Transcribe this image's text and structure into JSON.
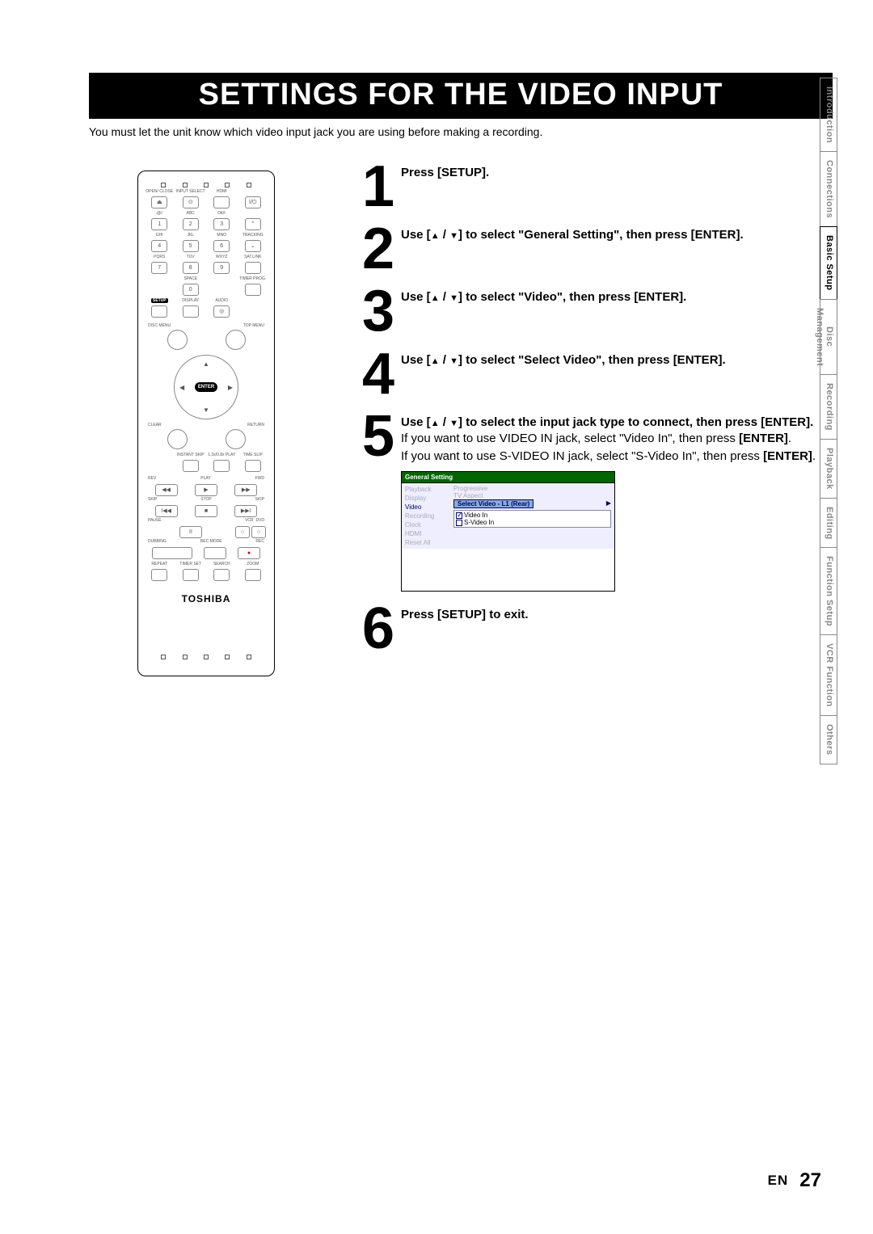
{
  "title": "SETTINGS FOR THE VIDEO INPUT",
  "intro": "You must let the unit know which video input jack you are using before making a recording.",
  "brand": "TOSHIBA",
  "remote": {
    "labels_row1": [
      "OPEN/\nCLOSE",
      "INPUT\nSELECT",
      "HDMI",
      ""
    ],
    "labels_row2": [
      ".@/:",
      "ABC",
      "DEF",
      ""
    ],
    "labels_row3": [
      "GHI",
      "JKL",
      "MNO",
      "TRACKING"
    ],
    "labels_row4": [
      "PQRS",
      "TUV",
      "WXYZ",
      "SAT.LINK"
    ],
    "labels_row5": [
      "",
      "SPACE",
      "",
      "TIMER\nPROG."
    ],
    "labels_row6": [
      "SETUP",
      "DISPLAY",
      "AUDIO",
      ""
    ],
    "nums": [
      "1",
      "2",
      "3",
      "",
      "4",
      "5",
      "6",
      "",
      "7",
      "8",
      "9",
      "",
      "",
      "0",
      "",
      ""
    ],
    "btn_eject": "⏏",
    "btn_target": "⊙",
    "btn_power": "I/⏻",
    "btn_up": "⌃",
    "btn_dn": "⌄",
    "disc_menu": "DISC MENU",
    "top_menu": "TOP MENU",
    "enter": "ENTER",
    "clear": "CLEAR",
    "return": "RETURN",
    "instant_skip": "INSTANT\nSKIP",
    "slow": "1.3x/0.8x\nPLAY",
    "timeslip": "TIME SLIP",
    "rev": "REV",
    "play_l": "PLAY",
    "fwd": "FWD",
    "skip_l": "SKIP",
    "stop": "STOP",
    "skip_r": "SKIP",
    "pause": "PAUSE",
    "vcr": "VCR",
    "dvd": "DVD",
    "dubbing": "DUBBING",
    "recmode": "REC MODE",
    "rec": "REC",
    "repeat": "REPEAT",
    "timerset": "TIMER SET",
    "search": "SEARCH",
    "zoom": "ZOOM",
    "sym_rev": "◀◀",
    "sym_play": "▶",
    "sym_fwd": "▶▶",
    "sym_skipL": "I◀◀",
    "sym_stop": "■",
    "sym_skipR": "▶▶I",
    "sym_pause": "II",
    "sym_rec": "●",
    "sym_circle": "○"
  },
  "steps": [
    {
      "n": "1",
      "h": "Press [SETUP]."
    },
    {
      "n": "2",
      "h": "Use [▲ / ▼] to select \"General Setting\", then press [ENTER]."
    },
    {
      "n": "3",
      "h": "Use [▲ / ▼] to select \"Video\", then press [ENTER]."
    },
    {
      "n": "4",
      "h": "Use [▲ / ▼] to select \"Select Video\", then press [ENTER]."
    },
    {
      "n": "5",
      "h": "Use [▲ / ▼] to select the input jack type to connect, then press [ENTER].",
      "body": [
        "If you want to use VIDEO IN jack, select \"Video In\", then press [ENTER].",
        " If you want to use S-VIDEO IN jack, select \"S-Video In\", then press [ENTER]."
      ],
      "menu": true
    },
    {
      "n": "6",
      "h": "Press [SETUP] to exit."
    }
  ],
  "menu": {
    "title": "General Setting",
    "left": [
      {
        "t": "Playback",
        "dim": true
      },
      {
        "t": "Display",
        "dim": true
      },
      {
        "t": "Video",
        "dim": false
      },
      {
        "t": "Recording",
        "dim": true
      },
      {
        "t": "Clock",
        "dim": true
      },
      {
        "t": "HDMI",
        "dim": true
      },
      {
        "t": "Reset All",
        "dim": true
      }
    ],
    "right_dim": [
      "Progressive",
      "TV Aspect"
    ],
    "selected": "Select Video - L1 (Rear)",
    "opts": [
      {
        "t": "Video In",
        "checked": true
      },
      {
        "t": "S-Video In",
        "checked": false
      }
    ]
  },
  "tabs": [
    {
      "t": "Introduction",
      "active": false
    },
    {
      "t": "Connections",
      "active": false
    },
    {
      "t": "Basic Setup",
      "active": true
    },
    {
      "t": "Disc Management",
      "active": false,
      "split": true,
      "l1": "Disc",
      "l2": "Management"
    },
    {
      "t": "Recording",
      "active": false
    },
    {
      "t": "Playback",
      "active": false
    },
    {
      "t": "Editing",
      "active": false
    },
    {
      "t": "Function Setup",
      "active": false
    },
    {
      "t": "VCR Function",
      "active": false
    },
    {
      "t": "Others",
      "active": false
    }
  ],
  "footer": {
    "lang": "EN",
    "page": "27"
  }
}
